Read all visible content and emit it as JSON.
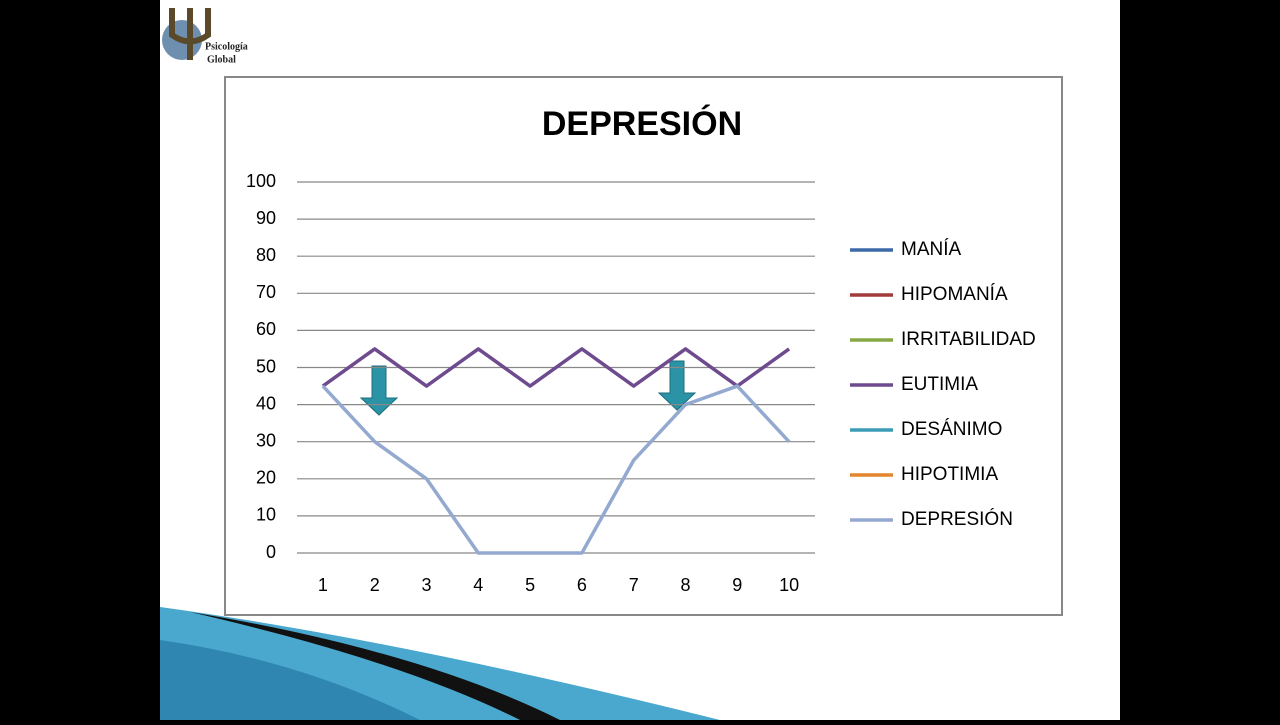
{
  "logo": {
    "line1": "Psicología",
    "line2": "Global"
  },
  "chart_data": {
    "type": "line",
    "title": "DEPRESIÓN",
    "categories": [
      "1",
      "2",
      "3",
      "4",
      "5",
      "6",
      "7",
      "8",
      "9",
      "10"
    ],
    "ylim": [
      0,
      100
    ],
    "yticks": [
      0,
      10,
      20,
      30,
      40,
      50,
      60,
      70,
      80,
      90,
      100
    ],
    "grid": true,
    "series": [
      {
        "name": "MANÍA",
        "color": "#3c6aa8",
        "values": [
          null,
          null,
          null,
          null,
          null,
          null,
          null,
          null,
          null,
          null
        ]
      },
      {
        "name": "HIPOMANÍA",
        "color": "#a13c3a",
        "values": [
          null,
          null,
          null,
          null,
          null,
          null,
          null,
          null,
          null,
          null
        ]
      },
      {
        "name": "IRRITABILIDAD",
        "color": "#86a845",
        "values": [
          null,
          null,
          null,
          null,
          null,
          null,
          null,
          null,
          null,
          null
        ]
      },
      {
        "name": "EUTIMIA",
        "color": "#6e4a8e",
        "values": [
          45,
          55,
          45,
          55,
          45,
          55,
          45,
          55,
          45,
          55
        ]
      },
      {
        "name": "DESÁNIMO",
        "color": "#3c9cb5",
        "values": [
          null,
          null,
          null,
          null,
          null,
          null,
          null,
          null,
          null,
          null
        ]
      },
      {
        "name": "HIPOTIMIA",
        "color": "#e3862e",
        "values": [
          null,
          null,
          null,
          null,
          null,
          null,
          null,
          null,
          null,
          null
        ]
      },
      {
        "name": "DEPRESIÓN",
        "color": "#93a9cf",
        "values": [
          45,
          30,
          20,
          0,
          0,
          0,
          25,
          40,
          45,
          30
        ]
      }
    ]
  }
}
